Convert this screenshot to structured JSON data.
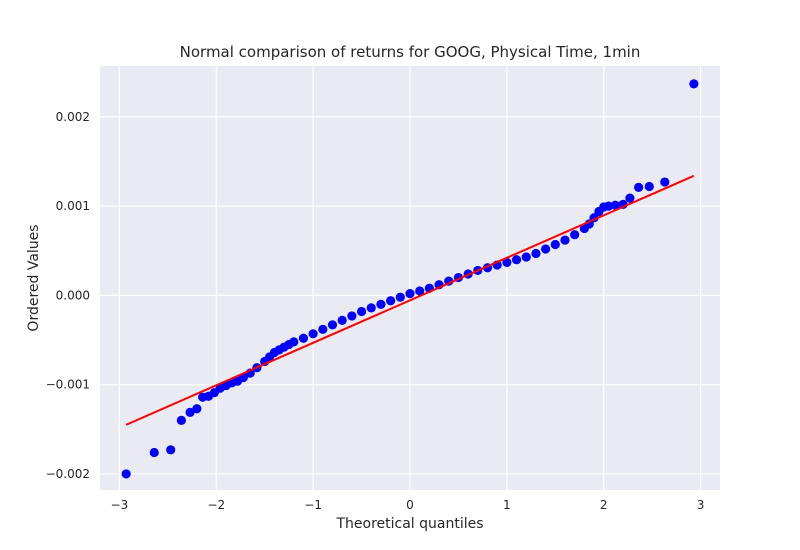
{
  "chart_data": {
    "type": "scatter",
    "title": "Normal comparison of returns for GOOG, Physical Time, 1min",
    "xlabel": "Theoretical quantiles",
    "ylabel": "Ordered Values",
    "xlim": [
      -3.2,
      3.2
    ],
    "ylim": [
      -0.00218,
      0.00257
    ],
    "xticks": [
      -3,
      -2,
      -1,
      0,
      1,
      2,
      3
    ],
    "xtick_labels": [
      "−3",
      "−2",
      "−1",
      "0",
      "1",
      "2",
      "3"
    ],
    "yticks": [
      -0.002,
      -0.001,
      0.0,
      0.001,
      0.002
    ],
    "ytick_labels": [
      "−0.002",
      "−0.001",
      "0.000",
      "0.001",
      "0.002"
    ],
    "grid": true,
    "background": "#eaeaf2",
    "series": [
      {
        "kind": "points",
        "color": "#0000ff",
        "x": [
          -2.93,
          -2.64,
          -2.47,
          -2.36,
          -2.27,
          -2.2,
          -2.14,
          -2.08,
          -2.02,
          -1.96,
          -1.9,
          -1.84,
          -1.78,
          -1.72,
          -1.65,
          -1.58,
          -1.5,
          -1.45,
          -1.4,
          -1.35,
          -1.3,
          -1.25,
          -1.2,
          -1.1,
          -1.0,
          -0.9,
          -0.8,
          -0.7,
          -0.6,
          -0.5,
          -0.4,
          -0.3,
          -0.2,
          -0.1,
          0.0,
          0.1,
          0.2,
          0.3,
          0.4,
          0.5,
          0.6,
          0.7,
          0.8,
          0.9,
          1.0,
          1.1,
          1.2,
          1.3,
          1.4,
          1.5,
          1.6,
          1.7,
          1.8,
          1.85,
          1.9,
          1.95,
          2.0,
          2.05,
          2.12,
          2.2,
          2.27,
          2.36,
          2.47,
          2.63,
          2.93
        ],
        "y": [
          -0.002,
          -0.00176,
          -0.00173,
          -0.0014,
          -0.00131,
          -0.00127,
          -0.00114,
          -0.00113,
          -0.00109,
          -0.00104,
          -0.00101,
          -0.00098,
          -0.00096,
          -0.00092,
          -0.00087,
          -0.00081,
          -0.00074,
          -0.00069,
          -0.00064,
          -0.00061,
          -0.00058,
          -0.00055,
          -0.00052,
          -0.00048,
          -0.00043,
          -0.00038,
          -0.00033,
          -0.00028,
          -0.00023,
          -0.00018,
          -0.00014,
          -0.0001,
          -6e-05,
          -2e-05,
          2e-05,
          5e-05,
          8e-05,
          0.00012,
          0.00016,
          0.0002,
          0.00024,
          0.00028,
          0.00031,
          0.00034,
          0.00037,
          0.0004,
          0.00043,
          0.00047,
          0.00052,
          0.00057,
          0.00062,
          0.00068,
          0.00075,
          0.0008,
          0.00087,
          0.00094,
          0.00099,
          0.001,
          0.00101,
          0.00102,
          0.00109,
          0.00121,
          0.00122,
          0.00127,
          0.00237
        ]
      },
      {
        "kind": "line",
        "color": "#ff0000",
        "x": [
          -2.93,
          2.93
        ],
        "y": [
          -0.00145,
          0.00134
        ]
      }
    ]
  }
}
